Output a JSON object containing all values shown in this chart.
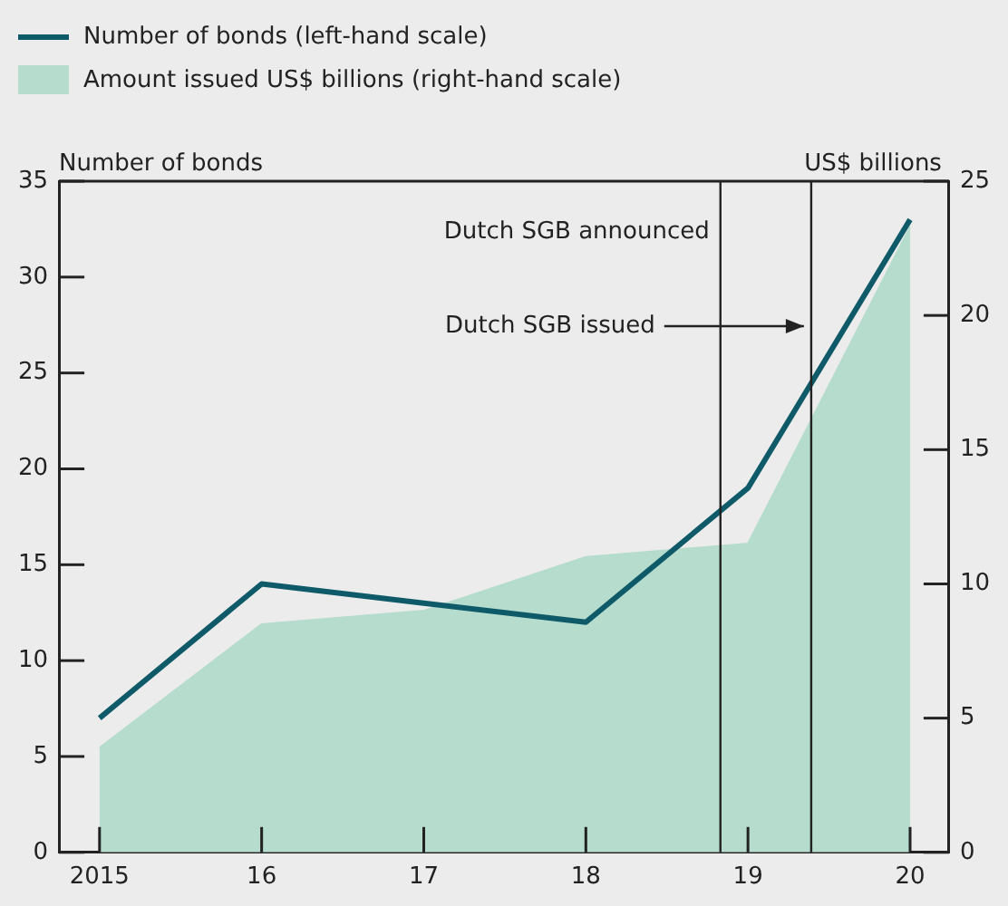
{
  "chart_data": {
    "type": "line",
    "ylabel": "Number of bonds",
    "y2label": "US$ billions",
    "legend": "top left",
    "marker": "none",
    "grid": false,
    "x": [
      2015,
      2016,
      2017,
      2018,
      2019,
      2020
    ],
    "xlim": [
      2014.75,
      2020.24
    ],
    "xticks": [
      {
        "value": 2015,
        "label": "2015"
      },
      {
        "value": 2016,
        "label": "16"
      },
      {
        "value": 2017,
        "label": "17"
      },
      {
        "value": 2018,
        "label": "18"
      },
      {
        "value": 2019,
        "label": "19"
      },
      {
        "value": 2020,
        "label": "20"
      }
    ],
    "ylim": [
      0,
      35
    ],
    "yticks": [
      0,
      5,
      10,
      15,
      20,
      25,
      30,
      35
    ],
    "y2lim": [
      0,
      25
    ],
    "y2ticks": [
      0,
      5,
      10,
      15,
      20,
      25
    ],
    "series": [
      {
        "name": "Amount issued US$ billions (right-hand scale)",
        "type": "area",
        "axis": "y2",
        "color": "#b5dccd",
        "values": [
          3.9,
          8.5,
          9.0,
          11.0,
          11.5,
          23.3
        ]
      },
      {
        "name": "Number of bonds (left-hand scale)",
        "type": "line",
        "axis": "y",
        "color": "#0f5a68",
        "values": [
          7,
          14,
          13,
          12,
          19,
          33
        ]
      }
    ],
    "ref_lines": [
      {
        "axis": "x",
        "value": 2018.83,
        "label": "Dutch SGB announced",
        "color": "#222222"
      },
      {
        "axis": "x",
        "value": 2019.39,
        "label": "Dutch SGB issued",
        "color": "#222222"
      }
    ]
  }
}
